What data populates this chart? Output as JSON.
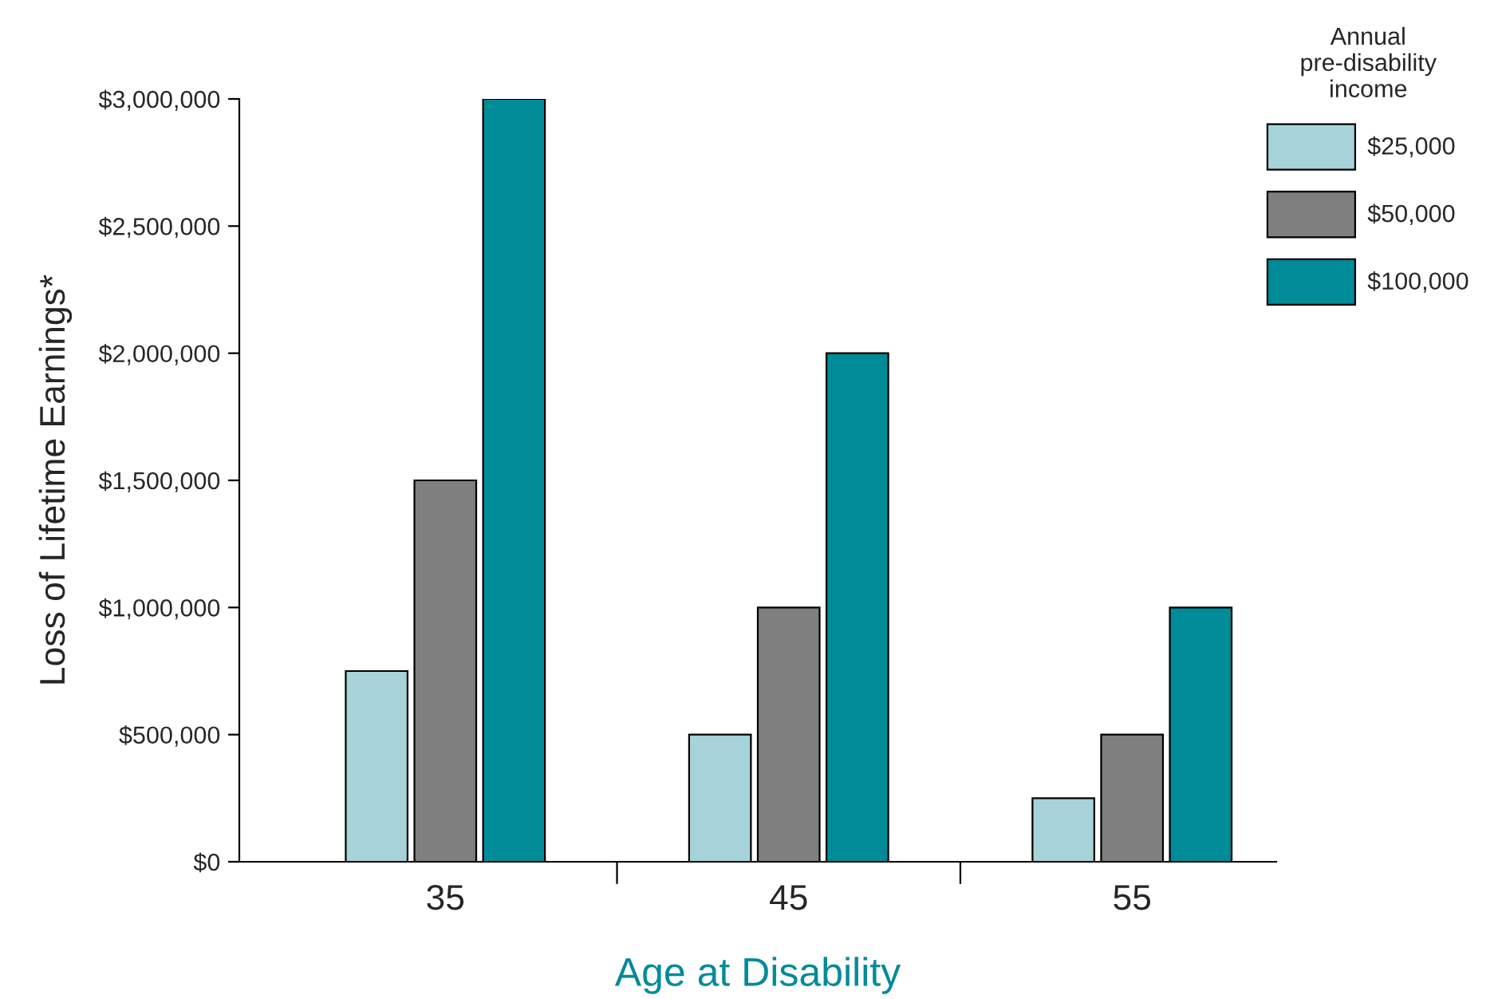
{
  "chart_data": {
    "type": "bar",
    "xlabel": "Age at Disability",
    "ylabel": "Loss of Lifetime Earnings*",
    "legend_title": "Annual\npre-disability\nincome",
    "categories": [
      "35",
      "45",
      "55"
    ],
    "series": [
      {
        "color": "#000000",
        "values": [
          0,
          0,
          0
        ]
      },
      {
        "name": "$25,000",
        "color": "#a6d3d9",
        "values": [
          750000,
          500000,
          250000
        ]
      },
      {
        "name": "$50,000",
        "color": "#7f7f7f",
        "values": [
          1500000,
          1000000,
          500000
        ]
      },
      {
        "name": "$100,000",
        "color": "#008b99",
        "values": [
          3000000,
          2000000,
          1000000
        ]
      }
    ],
    "ylim": [
      0,
      3000000
    ],
    "yticks": [
      {
        "value": 0,
        "label": "$0"
      },
      {
        "value": 500000,
        "label": "$500,000"
      },
      {
        "value": 1000000,
        "label": "$1,000,000"
      },
      {
        "value": 1500000,
        "label": "$1,500,000"
      },
      {
        "value": 2000000,
        "label": "$2,000,000"
      },
      {
        "value": 2500000,
        "label": "$2,500,000"
      },
      {
        "value": 3000000,
        "label": "$3,000,000"
      }
    ],
    "grid": false,
    "legend": "top right"
  }
}
